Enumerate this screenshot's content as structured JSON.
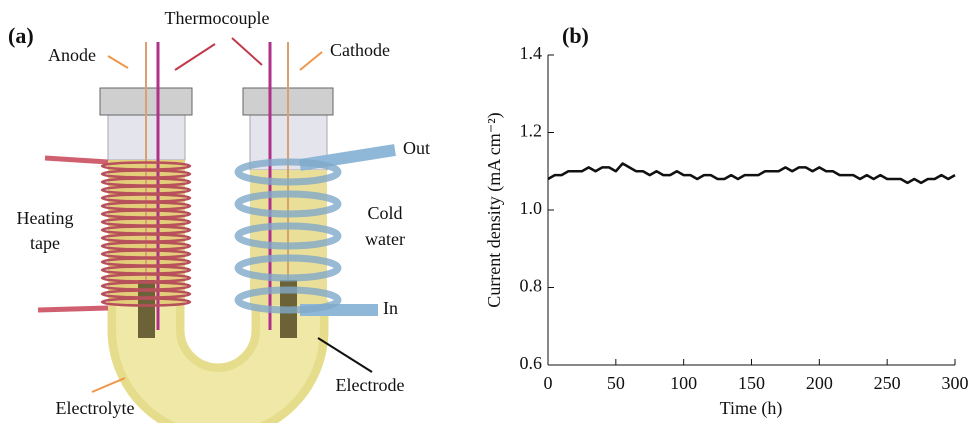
{
  "diagram": {
    "panel_label": "(a)",
    "thermocouple": "Thermocouple",
    "anode": "Anode",
    "cathode": "Cathode",
    "out": "Out",
    "in": "In",
    "heating_tape": [
      "Heating",
      "tape"
    ],
    "cold_water": [
      "Cold",
      "water"
    ],
    "electrode": "Electrode",
    "electrolyte": "Electrolyte"
  },
  "chart_data": {
    "type": "line",
    "panel_label": "(b)",
    "x_label": "Time (h)",
    "y_label": "Current density (mA cm⁻²)",
    "x": [
      0,
      5,
      10,
      15,
      20,
      25,
      30,
      35,
      40,
      45,
      50,
      55,
      60,
      65,
      70,
      75,
      80,
      85,
      90,
      95,
      100,
      105,
      110,
      115,
      120,
      125,
      130,
      135,
      140,
      145,
      150,
      155,
      160,
      165,
      170,
      175,
      180,
      185,
      190,
      195,
      200,
      205,
      210,
      215,
      220,
      225,
      230,
      235,
      240,
      245,
      250,
      255,
      260,
      265,
      270,
      275,
      280,
      285,
      290,
      295,
      300
    ],
    "series": [
      {
        "color": "#111111",
        "values": [
          1.08,
          1.09,
          1.09,
          1.1,
          1.1,
          1.1,
          1.11,
          1.1,
          1.11,
          1.11,
          1.1,
          1.12,
          1.11,
          1.1,
          1.1,
          1.09,
          1.1,
          1.09,
          1.09,
          1.1,
          1.09,
          1.09,
          1.08,
          1.09,
          1.09,
          1.08,
          1.08,
          1.09,
          1.08,
          1.09,
          1.09,
          1.09,
          1.1,
          1.1,
          1.1,
          1.11,
          1.1,
          1.11,
          1.11,
          1.1,
          1.11,
          1.1,
          1.1,
          1.09,
          1.09,
          1.09,
          1.08,
          1.09,
          1.08,
          1.09,
          1.08,
          1.08,
          1.08,
          1.07,
          1.08,
          1.07,
          1.08,
          1.08,
          1.09,
          1.08,
          1.09
        ]
      }
    ],
    "xlim": [
      0,
      300
    ],
    "xticks": [
      0,
      50,
      100,
      150,
      200,
      250,
      300
    ],
    "ylim": [
      0.6,
      1.4
    ],
    "yticks": [
      0.6,
      0.8,
      {
        "value": 1,
        "label": "1.0"
      },
      1.2,
      1.4
    ]
  }
}
